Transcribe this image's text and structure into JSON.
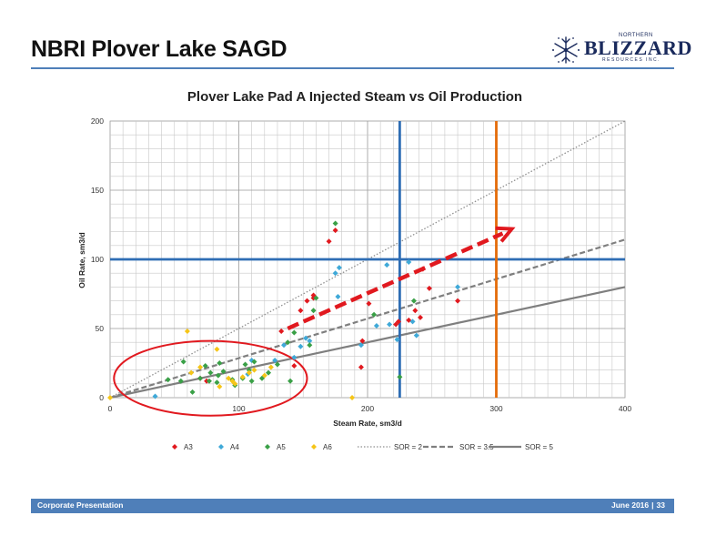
{
  "slide": {
    "title": "NBRI Plover Lake SAGD",
    "logo": {
      "top_text": "NORTHERN",
      "name": "BLIZZARD",
      "bottom_text": "RESOURCES INC."
    },
    "footer": {
      "left": "Corporate Presentation",
      "date": "June 2016",
      "page": "33",
      "separator": "|"
    }
  },
  "colors": {
    "A3": "#e1191f",
    "A4": "#3fa9d8",
    "A5": "#3aa047",
    "A6": "#f5c518",
    "sor_lines": "#888888",
    "hline": "#2e6db4",
    "vline_blue": "#2e6db4",
    "vline_orange": "#e46c0a",
    "arrow": "#e1191f",
    "ellipse": "#e1191f",
    "title_rule": "#4f7fb9",
    "footer_bar": "#4f7fb9"
  },
  "chart_data": {
    "type": "scatter",
    "title": "Plover Lake Pad A Injected Steam vs Oil Production",
    "xlabel": "Steam Rate, sm3/d",
    "ylabel": "Oil Rate, sm3/d",
    "xlim": [
      0,
      400
    ],
    "ylim": [
      0,
      200
    ],
    "xticks": [
      0,
      100,
      200,
      300,
      400
    ],
    "yticks": [
      0,
      50,
      100,
      150,
      200
    ],
    "grid": true,
    "legend_position": "bottom",
    "series": [
      {
        "name": "A3",
        "marker": "diamond",
        "color": "#e1191f",
        "points": [
          [
            70,
            14
          ],
          [
            75,
            12
          ],
          [
            133,
            48
          ],
          [
            143,
            23
          ],
          [
            148,
            63
          ],
          [
            153,
            70
          ],
          [
            158,
            74
          ],
          [
            158,
            72
          ],
          [
            170,
            113
          ],
          [
            175,
            121
          ],
          [
            195,
            22
          ],
          [
            196,
            41
          ],
          [
            201,
            68
          ],
          [
            222,
            53
          ],
          [
            224,
            55
          ],
          [
            232,
            56
          ],
          [
            237,
            63
          ],
          [
            241,
            58
          ],
          [
            243,
            93
          ],
          [
            248,
            79
          ],
          [
            270,
            70
          ]
        ]
      },
      {
        "name": "A4",
        "marker": "diamond",
        "color": "#3fa9d8",
        "points": [
          [
            35,
            1
          ],
          [
            107,
            17
          ],
          [
            110,
            27
          ],
          [
            128,
            27
          ],
          [
            135,
            38
          ],
          [
            143,
            29
          ],
          [
            148,
            37
          ],
          [
            152,
            43
          ],
          [
            155,
            41
          ],
          [
            175,
            90
          ],
          [
            177,
            73
          ],
          [
            178,
            94
          ],
          [
            195,
            38
          ],
          [
            207,
            52
          ],
          [
            215,
            96
          ],
          [
            217,
            53
          ],
          [
            223,
            42
          ],
          [
            232,
            98
          ],
          [
            235,
            55
          ],
          [
            238,
            45
          ],
          [
            270,
            80
          ]
        ]
      },
      {
        "name": "A5",
        "marker": "diamond",
        "color": "#3aa047",
        "points": [
          [
            45,
            13
          ],
          [
            55,
            12
          ],
          [
            57,
            26
          ],
          [
            64,
            4
          ],
          [
            70,
            14
          ],
          [
            74,
            23
          ],
          [
            77,
            12
          ],
          [
            78,
            18
          ],
          [
            83,
            11
          ],
          [
            84,
            16
          ],
          [
            85,
            25
          ],
          [
            88,
            19
          ],
          [
            95,
            13
          ],
          [
            97,
            9
          ],
          [
            103,
            14
          ],
          [
            105,
            24
          ],
          [
            108,
            20
          ],
          [
            110,
            12
          ],
          [
            112,
            26
          ],
          [
            118,
            14
          ],
          [
            123,
            18
          ],
          [
            130,
            24
          ],
          [
            138,
            40
          ],
          [
            143,
            47
          ],
          [
            140,
            12
          ],
          [
            155,
            38
          ],
          [
            158,
            63
          ],
          [
            160,
            72
          ],
          [
            175,
            126
          ],
          [
            205,
            60
          ],
          [
            225,
            15
          ],
          [
            236,
            70
          ]
        ]
      },
      {
        "name": "A6",
        "marker": "diamond",
        "color": "#f5c518",
        "points": [
          [
            0,
            0
          ],
          [
            60,
            48
          ],
          [
            63,
            18
          ],
          [
            70,
            22
          ],
          [
            83,
            35
          ],
          [
            85,
            8
          ],
          [
            92,
            14
          ],
          [
            95,
            12
          ],
          [
            97,
            10
          ],
          [
            103,
            15
          ],
          [
            108,
            18
          ],
          [
            112,
            20
          ],
          [
            120,
            16
          ],
          [
            125,
            22
          ],
          [
            188,
            0
          ]
        ]
      }
    ],
    "reference_lines": [
      {
        "name": "SOR = 2",
        "slope": 0.5,
        "style": "dotted"
      },
      {
        "name": "SOR = 3.5",
        "slope": 0.2857,
        "style": "dashed"
      },
      {
        "name": "SOR = 5",
        "slope": 0.2,
        "style": "solid"
      }
    ],
    "annotations": {
      "horizontal_line_y": 100,
      "vertical_lines_x": [
        225,
        300
      ],
      "arrow": {
        "from": [
          138,
          50
        ],
        "to": [
          312,
          122
        ]
      },
      "ellipse": {
        "cx": 78,
        "cy": 14,
        "rx": 75,
        "ry": 27
      }
    }
  }
}
